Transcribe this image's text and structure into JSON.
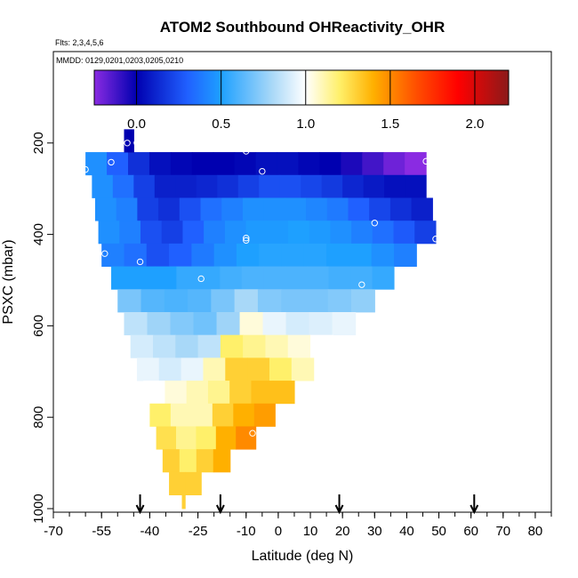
{
  "chart_data": {
    "type": "heatmap",
    "title": "ATOM2 Southbound OHReactivity_OHR",
    "flights_label": "Flts: 2,3,4,5,6",
    "dates_label": "MMDD: 0129,0201,0203,0205,0210",
    "xlabel": "Latitude (deg N)",
    "ylabel": "PSXC (mbar)",
    "xlim": [
      -70,
      85
    ],
    "ylim": [
      1000,
      0
    ],
    "x_ticks": [
      "-70",
      "-55",
      "-40",
      "-25",
      "-10",
      "0",
      "10",
      "20",
      "30",
      "40",
      "50",
      "60",
      "70",
      "80"
    ],
    "x_tick_values": [
      -70,
      -55,
      -40,
      -25,
      -10,
      0,
      10,
      20,
      30,
      40,
      50,
      60,
      70,
      80
    ],
    "y_ticks": [
      "200",
      "400",
      "600",
      "800",
      "1000"
    ],
    "y_tick_values": [
      200,
      400,
      600,
      800,
      1000
    ],
    "colorbar": {
      "range": [
        -0.25,
        2.2
      ],
      "ticks": [
        "0.0",
        "0.5",
        "1.0",
        "1.5",
        "2.0"
      ],
      "tick_values": [
        0.0,
        0.5,
        1.0,
        1.5,
        2.0
      ]
    },
    "arrows_latitude": [
      -43,
      -18,
      19,
      61
    ],
    "bands": [
      {
        "p_top": 220,
        "p_bottom": 270,
        "lat_min": -60,
        "lat_max": 46,
        "values": [
          0.45,
          0.3,
          0.15,
          0.05,
          0.02,
          0.0,
          0.0,
          0.02,
          0.05,
          0.05,
          0.02,
          0.0,
          -0.05,
          -0.12,
          -0.2,
          -0.25
        ]
      },
      {
        "p_top": 270,
        "p_bottom": 320,
        "lat_min": -58,
        "lat_max": 46,
        "values": [
          0.45,
          0.35,
          0.2,
          0.1,
          0.1,
          0.12,
          0.15,
          0.2,
          0.25,
          0.25,
          0.22,
          0.18,
          0.12,
          0.08,
          0.05,
          0.05
        ]
      },
      {
        "p_top": 320,
        "p_bottom": 370,
        "lat_min": -57,
        "lat_max": 48,
        "values": [
          0.45,
          0.4,
          0.2,
          0.15,
          0.25,
          0.35,
          0.4,
          0.45,
          0.45,
          0.45,
          0.42,
          0.38,
          0.3,
          0.22,
          0.15,
          0.1
        ]
      },
      {
        "p_top": 370,
        "p_bottom": 420,
        "lat_min": -56,
        "lat_max": 49,
        "values": [
          0.45,
          0.4,
          0.25,
          0.2,
          0.3,
          0.4,
          0.45,
          0.48,
          0.48,
          0.5,
          0.48,
          0.45,
          0.4,
          0.35,
          0.28,
          0.2
        ]
      },
      {
        "p_top": 420,
        "p_bottom": 470,
        "lat_min": -55,
        "lat_max": 43,
        "values": [
          0.4,
          0.35,
          0.25,
          0.3,
          0.38,
          0.45,
          0.5,
          0.52,
          0.52,
          0.52,
          0.5,
          0.5,
          0.45,
          0.4
        ]
      },
      {
        "p_top": 470,
        "p_bottom": 520,
        "lat_min": -52,
        "lat_max": 36,
        "values": [
          0.5,
          0.5,
          0.5,
          0.55,
          0.55,
          0.58,
          0.6,
          0.6,
          0.6,
          0.6,
          0.58,
          0.58,
          0.55
        ]
      },
      {
        "p_top": 520,
        "p_bottom": 570,
        "lat_min": -50,
        "lat_max": 30,
        "values": [
          0.7,
          0.62,
          0.6,
          0.62,
          0.7,
          0.8,
          0.72,
          0.7,
          0.7,
          0.72,
          0.75
        ]
      },
      {
        "p_top": 570,
        "p_bottom": 620,
        "lat_min": -48,
        "lat_max": 24,
        "values": [
          0.85,
          0.78,
          0.72,
          0.68,
          0.78,
          1.05,
          0.95,
          0.9,
          0.92,
          0.95
        ]
      },
      {
        "p_top": 620,
        "p_bottom": 670,
        "lat_min": -46,
        "lat_max": 17,
        "values": [
          0.9,
          0.85,
          0.8,
          0.85,
          1.2,
          1.15,
          1.1,
          1.05,
          1.0
        ]
      },
      {
        "p_top": 670,
        "p_bottom": 720,
        "lat_min": -44,
        "lat_max": 11,
        "values": [
          0.95,
          0.9,
          0.95,
          1.1,
          1.3,
          1.3,
          1.2,
          1.1
        ]
      },
      {
        "p_top": 720,
        "p_bottom": 770,
        "lat_min": -42,
        "lat_max": 5,
        "values": [
          1.0,
          1.05,
          1.1,
          1.15,
          1.3,
          1.35,
          1.35
        ]
      },
      {
        "p_top": 770,
        "p_bottom": 820,
        "lat_min": -40,
        "lat_max": -1,
        "values": [
          1.2,
          1.1,
          1.1,
          1.3,
          1.4,
          1.45
        ]
      },
      {
        "p_top": 820,
        "p_bottom": 870,
        "lat_min": -38,
        "lat_max": -7,
        "values": [
          1.25,
          1.15,
          1.2,
          1.4,
          1.5
        ]
      },
      {
        "p_top": 870,
        "p_bottom": 920,
        "lat_min": -36,
        "lat_max": -15,
        "values": [
          1.3,
          1.2,
          1.3,
          1.4
        ]
      },
      {
        "p_top": 920,
        "p_bottom": 970,
        "lat_min": -34,
        "lat_max": -24,
        "values": [
          1.3,
          1.3
        ]
      },
      {
        "p_top": 970,
        "p_bottom": 1000,
        "lat_min": -30,
        "lat_max": -29,
        "values": [
          1.3
        ]
      },
      {
        "p_top": 170,
        "p_bottom": 220,
        "lat_min": -48,
        "lat_max": -45,
        "values": [
          0.0
        ]
      }
    ],
    "points": [
      {
        "lat": -47,
        "p": 200
      },
      {
        "lat": -44,
        "p": 200
      },
      {
        "lat": -60,
        "p": 258
      },
      {
        "lat": -52,
        "p": 242
      },
      {
        "lat": -10,
        "p": 218
      },
      {
        "lat": -5,
        "p": 262
      },
      {
        "lat": 46,
        "p": 240
      },
      {
        "lat": -10,
        "p": 408
      },
      {
        "lat": -10,
        "p": 413
      },
      {
        "lat": 30,
        "p": 375
      },
      {
        "lat": 49,
        "p": 410
      },
      {
        "lat": -54,
        "p": 442
      },
      {
        "lat": -43,
        "p": 460
      },
      {
        "lat": -24,
        "p": 497
      },
      {
        "lat": 26,
        "p": 510
      },
      {
        "lat": -8,
        "p": 835
      }
    ]
  }
}
